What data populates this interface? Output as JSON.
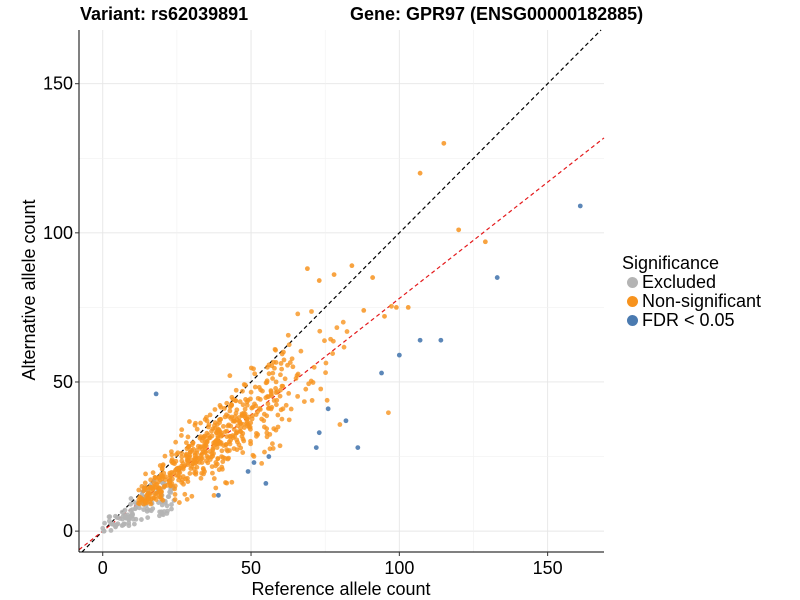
{
  "chart_data": {
    "type": "scatter",
    "title_left": "Variant: rs62039891",
    "title_right": "Gene: GPR97 (ENSG00000182885)",
    "xlabel": "Reference allele count",
    "ylabel": "Alternative allele count",
    "xlim": [
      -8,
      169
    ],
    "ylim": [
      -7,
      168
    ],
    "xticks": [
      0,
      50,
      100,
      150
    ],
    "yticks": [
      0,
      50,
      100,
      150
    ],
    "reference_lines": [
      {
        "name": "identity",
        "slope": 1.0,
        "intercept": 0,
        "color": "#000000"
      },
      {
        "name": "fit",
        "slope": 0.78,
        "intercept": 0,
        "color": "#e41a1c"
      }
    ],
    "legend": {
      "title": "Significance",
      "entries": [
        {
          "label": "Excluded",
          "color": "#b4b4b4"
        },
        {
          "label": "Non-significant",
          "color": "#f7931e"
        },
        {
          "label": "FDR < 0.05",
          "color": "#4a7ab0"
        }
      ]
    },
    "fdr_points": [
      [
        18,
        46
      ],
      [
        161,
        109
      ],
      [
        133,
        85
      ],
      [
        114,
        64
      ],
      [
        107,
        64
      ],
      [
        100,
        59
      ],
      [
        94,
        53
      ],
      [
        76,
        41
      ],
      [
        82,
        37
      ],
      [
        73,
        33
      ],
      [
        86,
        28
      ],
      [
        72,
        28
      ],
      [
        56,
        25
      ],
      [
        51,
        23
      ],
      [
        49,
        20
      ],
      [
        55,
        16
      ],
      [
        39,
        12
      ]
    ],
    "nonsig_highlight_points": [
      [
        115,
        130
      ],
      [
        107,
        120
      ],
      [
        120,
        101
      ],
      [
        129,
        97
      ],
      [
        69,
        88
      ],
      [
        84,
        89
      ],
      [
        78,
        86
      ],
      [
        91,
        85
      ],
      [
        73,
        84
      ],
      [
        99,
        75
      ],
      [
        103,
        75
      ],
      [
        95,
        72
      ],
      [
        88,
        74
      ]
    ],
    "nonsig_cloud": {
      "n": 560,
      "x_mean": 38,
      "x_sd": 17,
      "ratio": 0.8,
      "ratio_sd": 0.15,
      "x_min": 12,
      "y_min": 9
    },
    "excluded_cloud": {
      "n": 110,
      "x_min": 0,
      "x_max": 24,
      "y_min": 0,
      "y_max": 17
    }
  }
}
